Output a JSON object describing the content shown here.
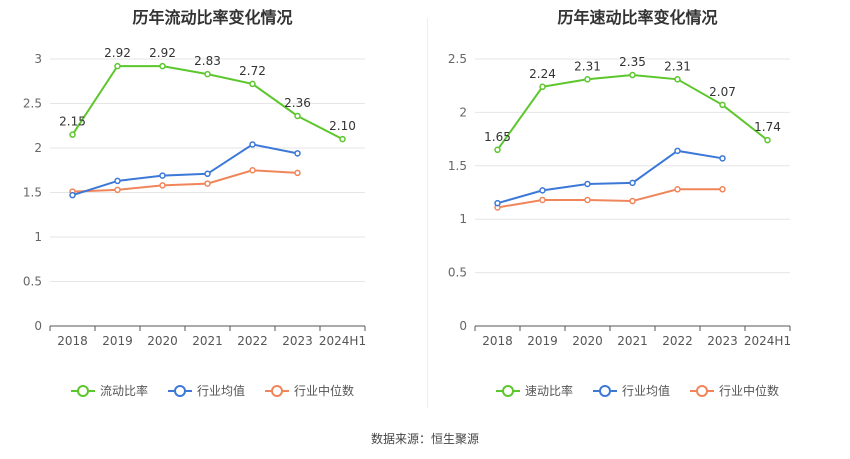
{
  "source": "数据来源：恒生聚源",
  "colors": {
    "main": "#5cc72c",
    "avg": "#3c78d8",
    "median": "#f0855a"
  },
  "chart_data": [
    {
      "type": "line",
      "title": "历年流动比率变化情况",
      "categories": [
        "2018",
        "2019",
        "2020",
        "2021",
        "2022",
        "2023",
        "2024H1"
      ],
      "ylim": [
        0,
        3
      ],
      "yticks": [
        0,
        0.5,
        1,
        1.5,
        2,
        2.5,
        3
      ],
      "ytick_labels": [
        "0",
        "0.5",
        "1",
        "1.5",
        "2",
        "2.5",
        "3"
      ],
      "grid": true,
      "legend_position": "bottom",
      "series": [
        {
          "name": "流动比率",
          "values": [
            2.15,
            2.92,
            2.92,
            2.83,
            2.72,
            2.36,
            2.1
          ],
          "labels": [
            "2.15",
            "2.92",
            "2.92",
            "2.83",
            "2.72",
            "2.36",
            "2.10"
          ]
        },
        {
          "name": "行业均值",
          "values": [
            1.47,
            1.63,
            1.69,
            1.71,
            2.04,
            1.94,
            null
          ]
        },
        {
          "name": "行业中位数",
          "values": [
            1.51,
            1.53,
            1.58,
            1.6,
            1.75,
            1.72,
            null
          ]
        }
      ]
    },
    {
      "type": "line",
      "title": "历年速动比率变化情况",
      "categories": [
        "2018",
        "2019",
        "2020",
        "2021",
        "2022",
        "2023",
        "2024H1"
      ],
      "ylim": [
        0,
        2.5
      ],
      "yticks": [
        0,
        0.5,
        1,
        1.5,
        2,
        2.5
      ],
      "ytick_labels": [
        "0",
        "0.5",
        "1",
        "1.5",
        "2",
        "2.5"
      ],
      "grid": true,
      "legend_position": "bottom",
      "series": [
        {
          "name": "速动比率",
          "values": [
            1.65,
            2.24,
            2.31,
            2.35,
            2.31,
            2.07,
            1.74
          ],
          "labels": [
            "1.65",
            "2.24",
            "2.31",
            "2.35",
            "2.31",
            "2.07",
            "1.74"
          ]
        },
        {
          "name": "行业均值",
          "values": [
            1.15,
            1.27,
            1.33,
            1.34,
            1.64,
            1.57,
            null
          ]
        },
        {
          "name": "行业中位数",
          "values": [
            1.11,
            1.18,
            1.18,
            1.17,
            1.28,
            1.28,
            null
          ]
        }
      ]
    }
  ]
}
